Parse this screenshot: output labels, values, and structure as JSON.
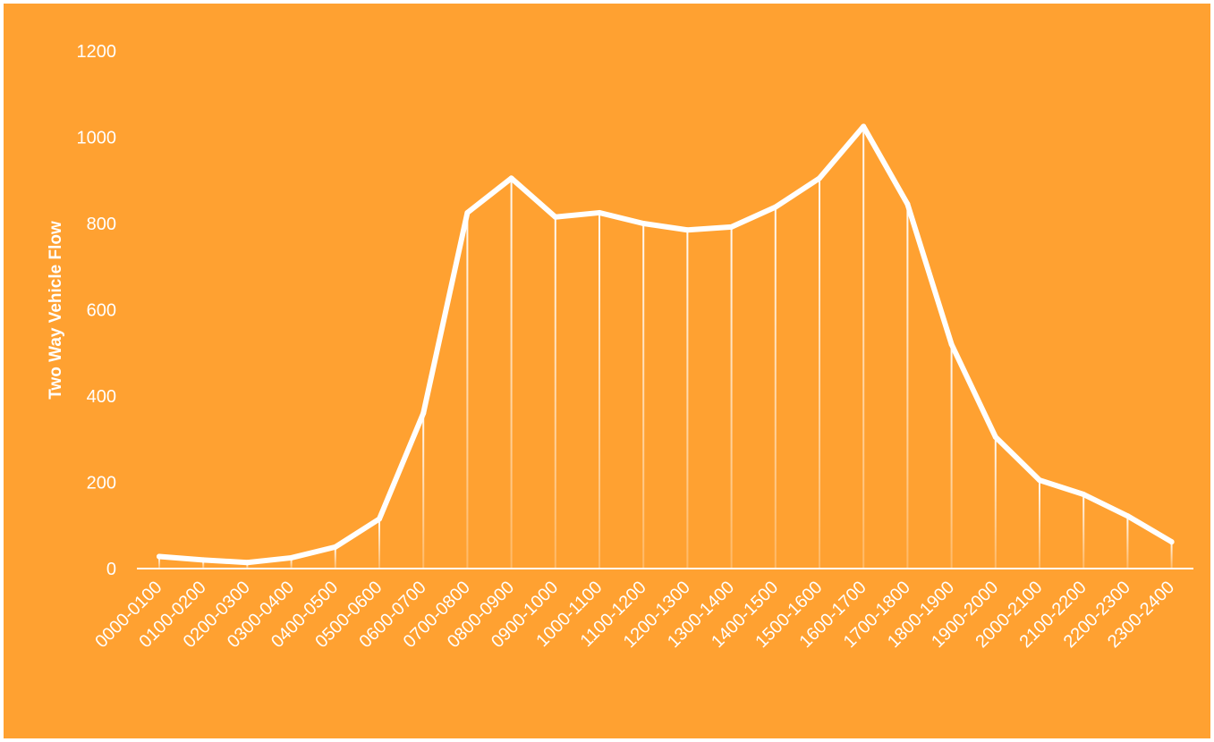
{
  "chart_data": {
    "type": "line",
    "title": "",
    "xlabel": "",
    "ylabel": "Two Way Vehicle Flow",
    "ylim": [
      0,
      1200
    ],
    "yticks": [
      0,
      200,
      400,
      600,
      800,
      1000,
      1200
    ],
    "ytick_labels": [
      "0",
      "200",
      "400",
      "600",
      "800",
      "1000",
      "1200"
    ],
    "grid": false,
    "drop_lines": true,
    "categories": [
      "0000-0100",
      "0100-0200",
      "0200-0300",
      "0300-0400",
      "0400-0500",
      "0500-0600",
      "0600-0700",
      "0700-0800",
      "0800-0900",
      "0900-1000",
      "1000-1100",
      "1100-1200",
      "1200-1300",
      "1300-1400",
      "1400-1500",
      "1500-1600",
      "1600-1700",
      "1700-1800",
      "1800-1900",
      "1900-2000",
      "2000-2100",
      "2100-2200",
      "2200-2300",
      "2300-2400"
    ],
    "series": [
      {
        "values": [
          28,
          20,
          14,
          25,
          50,
          115,
          360,
          825,
          905,
          815,
          825,
          800,
          785,
          792,
          838,
          905,
          1025,
          845,
          520,
          305,
          205,
          172,
          122,
          62
        ]
      }
    ]
  },
  "colors": {
    "background": "#FFA131",
    "line": "#FFFFFF",
    "text": "#FFFFFF"
  }
}
